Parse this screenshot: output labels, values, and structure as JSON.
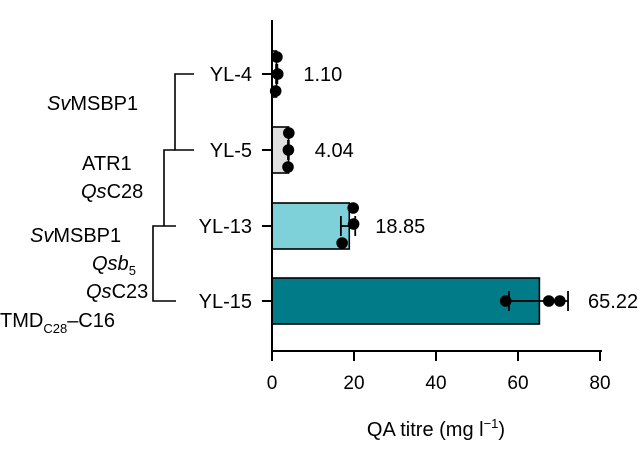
{
  "chart_data": {
    "type": "bar",
    "orientation": "horizontal",
    "xlabel": {
      "main": "QA titre (mg l",
      "sup": "−1",
      "close": ")"
    },
    "xlim": [
      0,
      80
    ],
    "xticks": [
      "0",
      "20",
      "40",
      "60",
      "80"
    ],
    "categories": [
      "YL-4",
      "YL-5",
      "YL-13",
      "YL-15"
    ],
    "values": [
      1.1,
      4.04,
      18.85,
      65.22
    ],
    "value_labels": [
      "1.10",
      "4.04",
      "18.85",
      "65.22"
    ],
    "error": [
      {
        "low": 1.0,
        "high": 1.3
      },
      {
        "low": 3.9,
        "high": 4.1
      },
      {
        "low": 16.8,
        "high": 20.3
      },
      {
        "low": 57.8,
        "high": 72.2
      }
    ],
    "points": [
      [
        1.2,
        1.4,
        0.9
      ],
      [
        4.1,
        4.0,
        3.9
      ],
      [
        19.8,
        19.9,
        17.1
      ],
      [
        57.0,
        67.5,
        70.2
      ]
    ],
    "bar_colors": [
      "#ffffff",
      "#e0e0e0",
      "#7ed1d9",
      "#007b87"
    ],
    "grid": false,
    "legend": "none",
    "annotations": {
      "svmsbp1_a": {
        "italic": "Sv",
        "rest": "MSBP1"
      },
      "atr1": "ATR1",
      "qsc28": {
        "italic": "Qs",
        "rest": "C28"
      },
      "svmsbp1_b": {
        "italic": "Sv",
        "rest": "MSBP1"
      },
      "qsb5": {
        "italic": "Qsb",
        "sub": "5"
      },
      "qsc23": {
        "italic": "Qs",
        "rest": "C23"
      },
      "tmd": {
        "main": "TMD",
        "sub": "C28",
        "rest": "–C16"
      }
    }
  }
}
